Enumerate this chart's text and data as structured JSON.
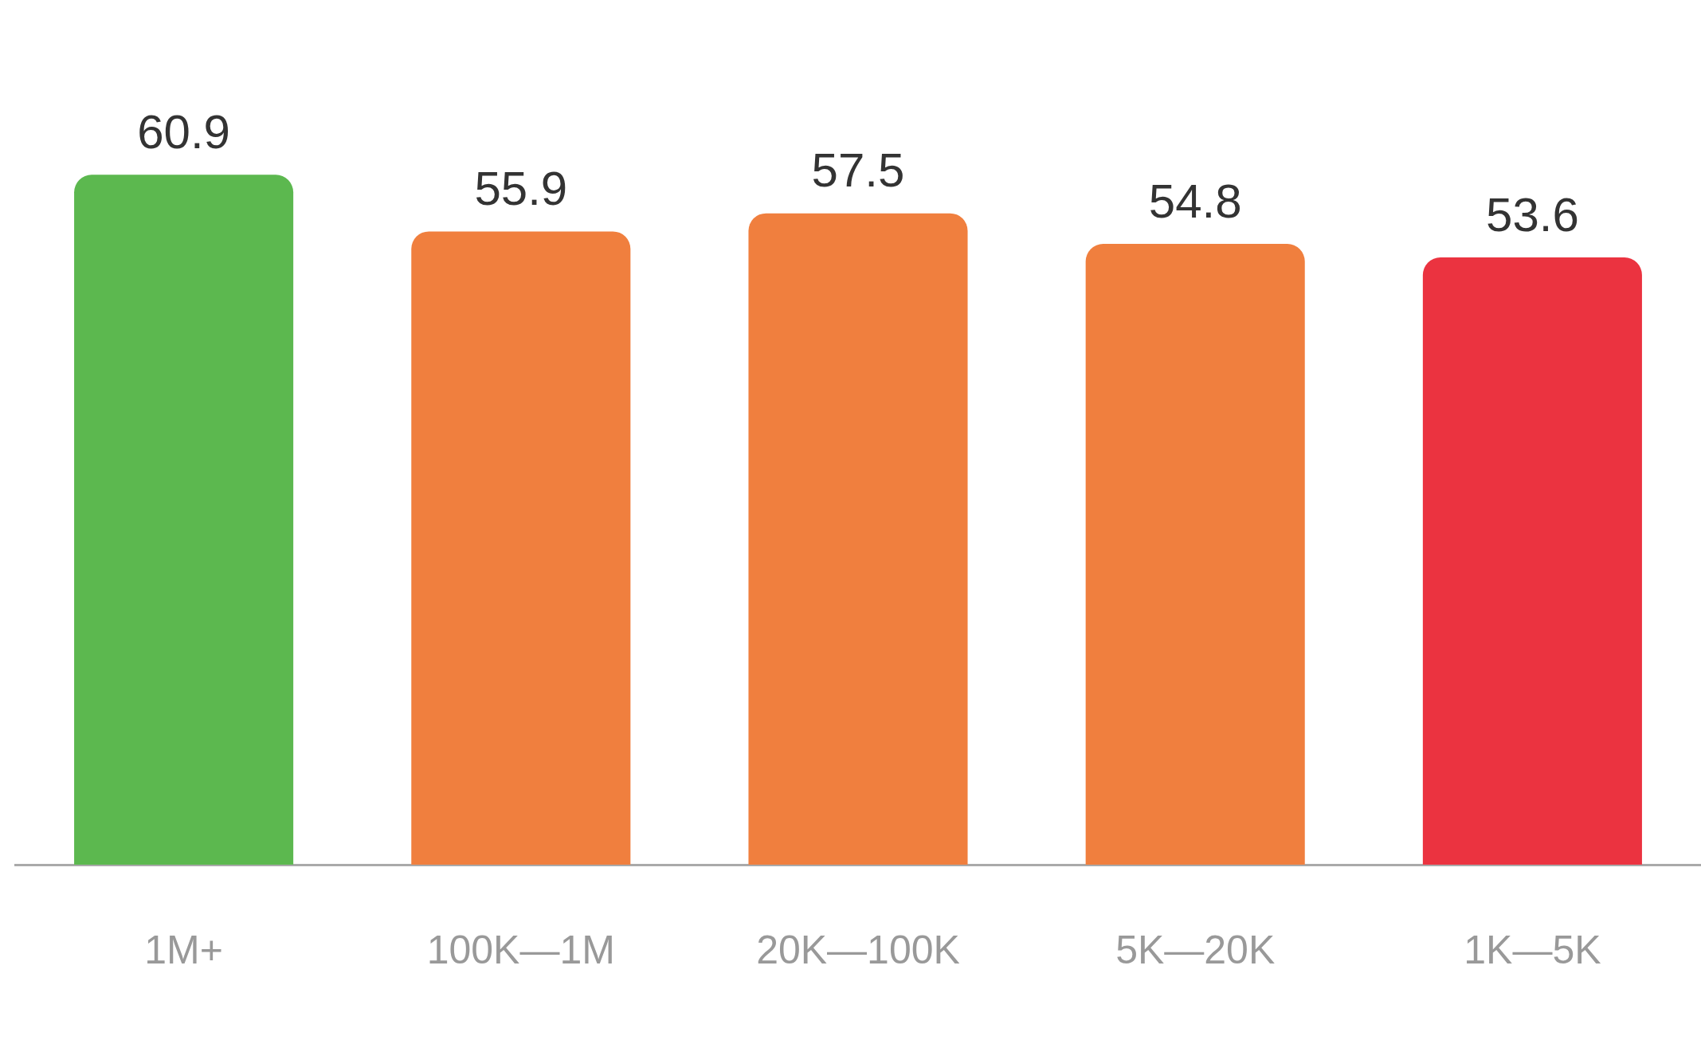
{
  "chart_data": {
    "type": "bar",
    "categories": [
      "1M+",
      "100K—1M",
      "20K—100K",
      "5K—20K",
      "1K—5K"
    ],
    "values": [
      60.9,
      55.9,
      57.5,
      54.8,
      53.6
    ],
    "colors": [
      "#5cb84f",
      "#f07f3e",
      "#f07f3e",
      "#f07f3e",
      "#eb3340"
    ],
    "tick_labels": "x",
    "data_labels": true,
    "grid": false,
    "legend": false
  }
}
